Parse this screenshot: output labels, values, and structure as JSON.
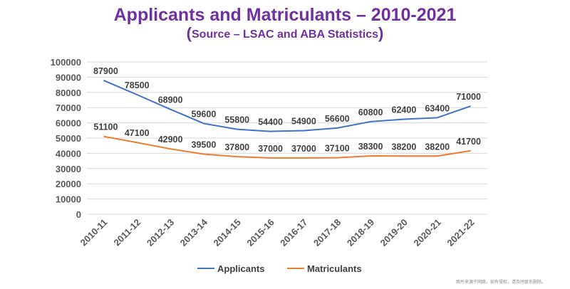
{
  "chart_data": {
    "type": "line",
    "title": "Applicants and Matriculants – 2010-2021",
    "subtitle_paren_open": "(",
    "subtitle_text": "Source – LSAC and ABA Statistics",
    "subtitle_paren_close": ")",
    "categories": [
      "2010-11",
      "2011-12",
      "2012-13",
      "2013-14",
      "2014-15",
      "2015-16",
      "2016-17",
      "2017-18",
      "2018-19",
      "2019-20",
      "2020-21",
      "2021-22"
    ],
    "ylim": [
      0,
      100000
    ],
    "yticks": [
      0,
      10000,
      20000,
      30000,
      40000,
      50000,
      60000,
      70000,
      80000,
      90000,
      100000
    ],
    "ytick_labels": [
      "0",
      "10000",
      "20000",
      "30000",
      "40000",
      "50000",
      "60000",
      "70000",
      "80000",
      "90000",
      "100000"
    ],
    "grid": true,
    "legend_position": "bottom",
    "series": [
      {
        "name": "Applicants",
        "color": "#4472c4",
        "values": [
          87900,
          78500,
          68900,
          59600,
          55800,
          54400,
          54900,
          56600,
          60800,
          62400,
          63400,
          71000
        ],
        "labels": [
          "87900",
          "78500",
          "68900",
          "59600",
          "55800",
          "54400",
          "54900",
          "56600",
          "60800",
          "62400",
          "63400",
          "71000"
        ]
      },
      {
        "name": "Matriculants",
        "color": "#ed7d31",
        "values": [
          51100,
          47100,
          42900,
          39500,
          37800,
          37000,
          37000,
          37100,
          38300,
          38200,
          38200,
          41700
        ],
        "labels": [
          "51100",
          "47100",
          "42900",
          "39500",
          "37800",
          "37000",
          "37000",
          "37100",
          "38300",
          "38200",
          "38200",
          "41700"
        ]
      }
    ]
  },
  "watermark": "图片来源于网络，如有侵权，请及时联系删除。"
}
